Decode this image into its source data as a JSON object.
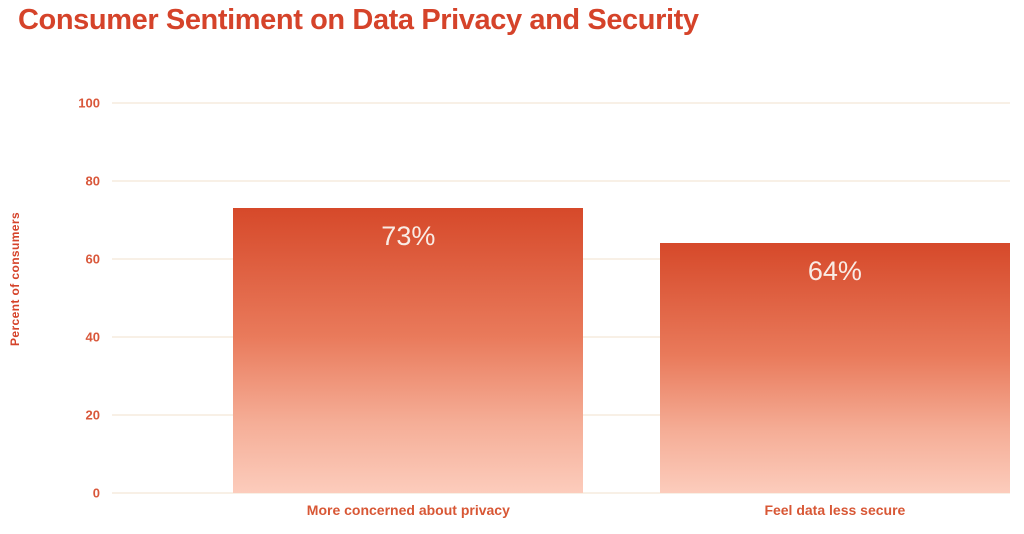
{
  "chart_data": {
    "type": "bar",
    "title": "Consumer Sentiment on Data Privacy and Security",
    "categories": [
      "More concerned about privacy",
      "Feel data less secure"
    ],
    "values": [
      73,
      64
    ],
    "value_labels": [
      "73%",
      "64%"
    ],
    "xlabel": "",
    "ylabel": "Percent of consumers",
    "ylim": [
      0,
      100
    ],
    "yticks": [
      0,
      20,
      40,
      60,
      80,
      100
    ],
    "grid": "horizontal-faint",
    "legend_position": "none",
    "colors": {
      "title_text": "#d5432a",
      "axis_tick_text": "#d9573a",
      "category_label_text": "#d85735",
      "bar_gradient_top": "#d6492a",
      "bar_gradient_bottom": "#fcccbc",
      "bar_value_text": "#f9ece5",
      "gridline": "#f8f0e6",
      "background": "#ffffff"
    }
  }
}
